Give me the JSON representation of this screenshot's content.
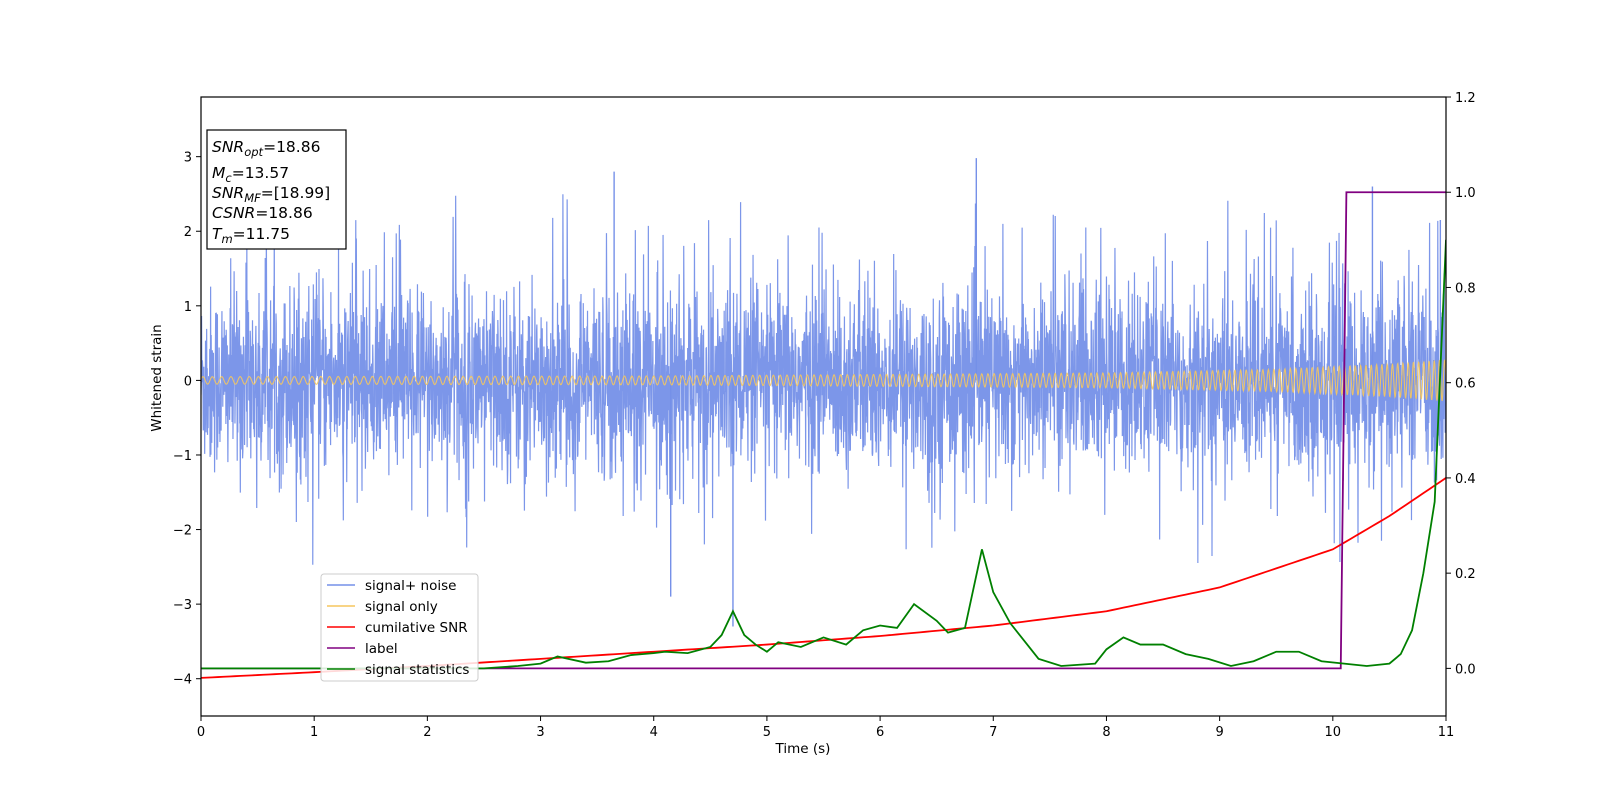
{
  "chart_data": {
    "type": "line",
    "xlabel": "Time (s)",
    "ylabel": "Whitened strain",
    "xlim": [
      0,
      11
    ],
    "ylim_left": [
      -4.5,
      3.8
    ],
    "ylim_right": [
      -0.1,
      1.2
    ],
    "x_ticks": [
      "0",
      "1",
      "2",
      "3",
      "4",
      "5",
      "6",
      "7",
      "8",
      "9",
      "10",
      "11"
    ],
    "y_left_ticks": [
      "−4",
      "−3",
      "−2",
      "−1",
      "0",
      "1",
      "2",
      "3"
    ],
    "y_right_ticks": [
      "0.0",
      "0.2",
      "0.4",
      "0.6",
      "0.8",
      "1.0",
      "1.2"
    ],
    "grid": false,
    "legend_position": "lower-left",
    "info_box": {
      "snr_opt": {
        "base": "SNR",
        "sub": "opt",
        "value": "=18.86"
      },
      "mc": {
        "base": "M",
        "sub": "c",
        "value": "=13.57"
      },
      "snr_mf": {
        "base": "SNR",
        "sub": "MF",
        "value": "=[18.99]"
      },
      "csnr": {
        "base": "CSNR",
        "sub": "",
        "value": "=18.86"
      },
      "tm": {
        "base": "T",
        "sub": "m",
        "value": "=11.75"
      }
    },
    "series": [
      {
        "name": "signal+ noise",
        "axis": "left",
        "color": "#7590e8",
        "note_style": "noisy trace",
        "envelope_typical": [
          -1.4,
          1.4
        ],
        "notable_spikes": [
          {
            "x": 3.65,
            "y": 2.8
          },
          {
            "x": 6.85,
            "y": 2.98
          },
          {
            "x": 4.7,
            "y": -3.3
          },
          {
            "x": 4.15,
            "y": -2.9
          },
          {
            "x": 10.35,
            "y": 2.6
          },
          {
            "x": 10.95,
            "y": 2.15
          }
        ]
      },
      {
        "name": "signal only",
        "axis": "left",
        "color": "#f5c65f",
        "note_style": "chirp",
        "amplitude": [
          [
            0,
            0.05
          ],
          [
            4,
            0.06
          ],
          [
            8,
            0.1
          ],
          [
            9.5,
            0.15
          ],
          [
            10.5,
            0.22
          ],
          [
            11,
            0.28
          ]
        ]
      },
      {
        "name": "cumilative SNR",
        "axis": "right",
        "color": "#ff0000",
        "points": [
          [
            0,
            -0.02
          ],
          [
            1,
            -0.008
          ],
          [
            2,
            0.005
          ],
          [
            3,
            0.02
          ],
          [
            4,
            0.035
          ],
          [
            5,
            0.05
          ],
          [
            6,
            0.068
          ],
          [
            7,
            0.09
          ],
          [
            8,
            0.12
          ],
          [
            9,
            0.17
          ],
          [
            10,
            0.25
          ],
          [
            10.5,
            0.32
          ],
          [
            11,
            0.4
          ]
        ]
      },
      {
        "name": "label",
        "axis": "right",
        "color": "#800080",
        "points": [
          [
            0,
            0
          ],
          [
            10.07,
            0
          ],
          [
            10.12,
            1.0
          ],
          [
            11,
            1.0
          ]
        ]
      },
      {
        "name": "signal statistics",
        "axis": "right",
        "color": "#008000",
        "points": [
          [
            0,
            0
          ],
          [
            2.5,
            0
          ],
          [
            2.8,
            0.005
          ],
          [
            3,
            0.01
          ],
          [
            3.15,
            0.025
          ],
          [
            3.4,
            0.012
          ],
          [
            3.6,
            0.015
          ],
          [
            3.8,
            0.028
          ],
          [
            4.0,
            0.032
          ],
          [
            4.1,
            0.035
          ],
          [
            4.3,
            0.032
          ],
          [
            4.5,
            0.045
          ],
          [
            4.6,
            0.07
          ],
          [
            4.7,
            0.12
          ],
          [
            4.8,
            0.07
          ],
          [
            4.9,
            0.05
          ],
          [
            5.0,
            0.035
          ],
          [
            5.1,
            0.055
          ],
          [
            5.3,
            0.045
          ],
          [
            5.5,
            0.065
          ],
          [
            5.7,
            0.05
          ],
          [
            5.85,
            0.08
          ],
          [
            6.0,
            0.09
          ],
          [
            6.15,
            0.085
          ],
          [
            6.3,
            0.135
          ],
          [
            6.5,
            0.1
          ],
          [
            6.6,
            0.075
          ],
          [
            6.75,
            0.085
          ],
          [
            6.9,
            0.25
          ],
          [
            7.0,
            0.16
          ],
          [
            7.15,
            0.095
          ],
          [
            7.4,
            0.02
          ],
          [
            7.6,
            0.005
          ],
          [
            7.9,
            0.01
          ],
          [
            8.0,
            0.04
          ],
          [
            8.15,
            0.065
          ],
          [
            8.3,
            0.05
          ],
          [
            8.5,
            0.05
          ],
          [
            8.7,
            0.03
          ],
          [
            8.9,
            0.02
          ],
          [
            9.1,
            0.005
          ],
          [
            9.3,
            0.015
          ],
          [
            9.5,
            0.035
          ],
          [
            9.7,
            0.035
          ],
          [
            9.9,
            0.015
          ],
          [
            10.1,
            0.01
          ],
          [
            10.3,
            0.005
          ],
          [
            10.5,
            0.01
          ],
          [
            10.6,
            0.03
          ],
          [
            10.7,
            0.08
          ],
          [
            10.8,
            0.2
          ],
          [
            10.9,
            0.35
          ],
          [
            11,
            0.9
          ]
        ]
      }
    ]
  }
}
